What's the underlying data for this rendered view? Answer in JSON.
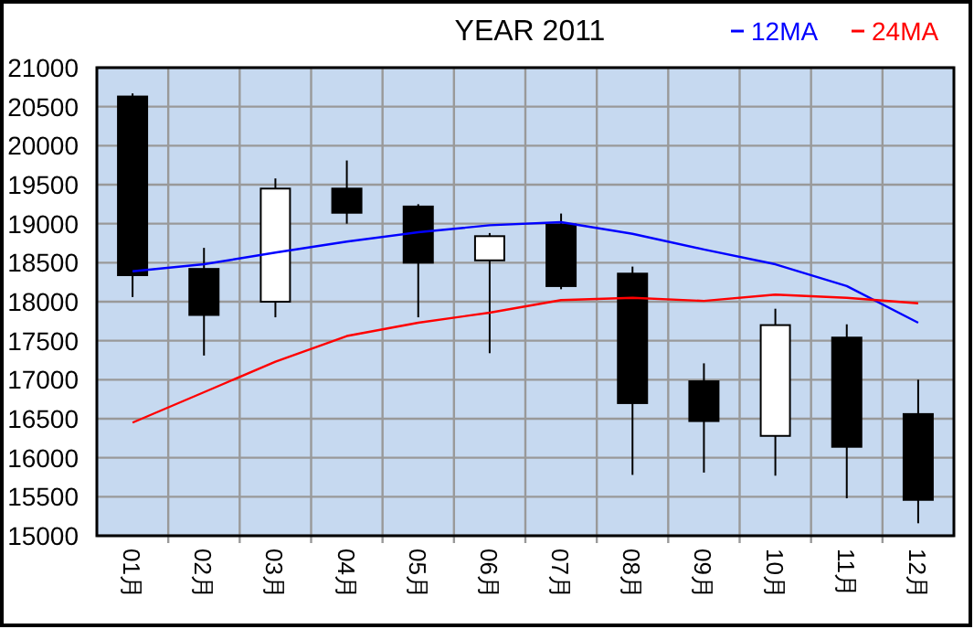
{
  "chart_data": {
    "type": "candlestick",
    "title": "YEAR 2011",
    "categories": [
      "01月",
      "02月",
      "03月",
      "04月",
      "05月",
      "06月",
      "07月",
      "08月",
      "09月",
      "10月",
      "11月",
      "12月"
    ],
    "ohlc": [
      [
        20630,
        20670,
        18060,
        18340
      ],
      [
        18420,
        18690,
        17310,
        17830
      ],
      [
        18000,
        19580,
        17800,
        19450
      ],
      [
        19450,
        19810,
        19000,
        19140
      ],
      [
        19220,
        19250,
        17800,
        18500
      ],
      [
        18530,
        18880,
        17340,
        18840
      ],
      [
        18990,
        19130,
        18160,
        18200
      ],
      [
        18360,
        18450,
        15780,
        16700
      ],
      [
        16980,
        17210,
        15810,
        16470
      ],
      [
        16280,
        17910,
        15770,
        17700
      ],
      [
        17540,
        17710,
        15480,
        16140
      ],
      [
        16560,
        17000,
        15160,
        15460
      ]
    ],
    "series": [
      {
        "name": "12MA",
        "type": "line",
        "color": "#0000ff",
        "values": [
          18390,
          18480,
          18630,
          18770,
          18890,
          18980,
          19020,
          18870,
          18670,
          18480,
          18200,
          17730
        ]
      },
      {
        "name": "24MA",
        "type": "line",
        "color": "#ff0000",
        "values": [
          16450,
          16840,
          17230,
          17560,
          17730,
          17860,
          18020,
          18050,
          18010,
          18090,
          18050,
          17980
        ]
      }
    ],
    "ylim": [
      15000,
      21000
    ],
    "yticks": [
      15000,
      15500,
      16000,
      16500,
      17000,
      17500,
      18000,
      18500,
      19000,
      19500,
      20000,
      20500,
      21000
    ],
    "grid": true,
    "legend": "top right",
    "line_style": "solid",
    "marker": "none"
  }
}
